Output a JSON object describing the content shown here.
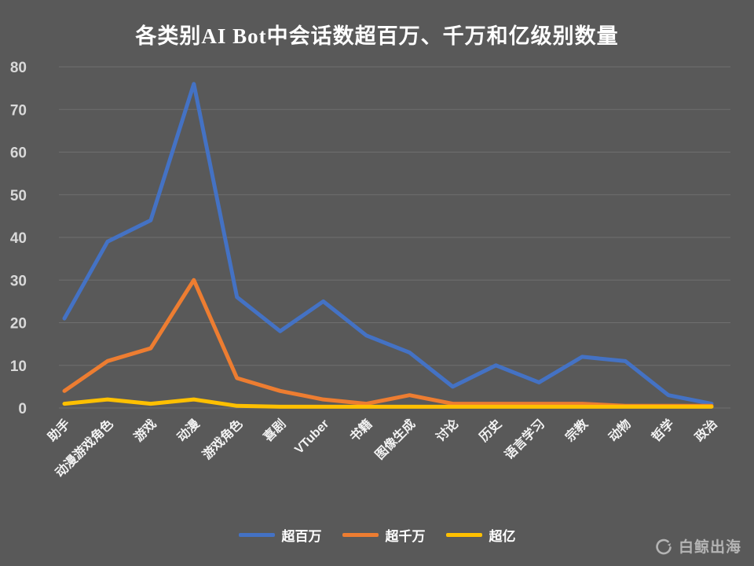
{
  "title": "各类别AI Bot中会话数超百万、千万和亿级别数量",
  "watermark": {
    "text": "白鲸出海"
  },
  "colors": {
    "background": "#595959",
    "grid": "#6f6f6f",
    "axis_text": "#d9d9d9",
    "category_text": "#f2f2f2",
    "title_text": "#ffffff"
  },
  "chart_data": {
    "type": "line",
    "title": "各类别AI Bot中会话数超百万、千万和亿级别数量",
    "categories": [
      "助手",
      "动漫游戏角色",
      "游戏",
      "动漫",
      "游戏角色",
      "喜剧",
      "VTuber",
      "书籍",
      "图像生成",
      "讨论",
      "历史",
      "语言学习",
      "宗教",
      "动物",
      "哲学",
      "政治"
    ],
    "series": [
      {
        "name": "超百万",
        "color": "#4472C4",
        "values": [
          21,
          39,
          44,
          76,
          26,
          18,
          25,
          17,
          13,
          5,
          10,
          6,
          12,
          11,
          3,
          1
        ]
      },
      {
        "name": "超千万",
        "color": "#ED7D31",
        "values": [
          4,
          11,
          14,
          30,
          7,
          4,
          2,
          1,
          3,
          1,
          1,
          1,
          1,
          0.5,
          0.5,
          0.5
        ]
      },
      {
        "name": "超亿",
        "color": "#FFC000",
        "values": [
          1,
          2,
          1,
          2,
          0.5,
          0.3,
          0.3,
          0.3,
          0.3,
          0.3,
          0.3,
          0.3,
          0.3,
          0.3,
          0.3,
          0.3
        ]
      }
    ],
    "xlabel": "",
    "ylabel": "",
    "ylim": [
      0,
      80
    ],
    "ytick_step": 10,
    "grid": true,
    "legend_position": "bottom"
  }
}
